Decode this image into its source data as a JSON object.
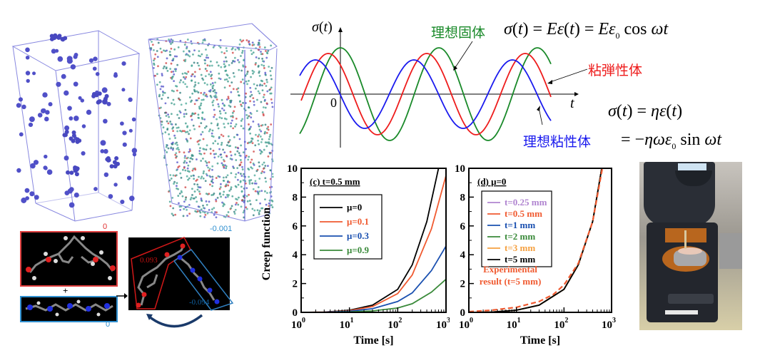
{
  "simulation_boxes": {
    "left_description": "sparse blue particle clusters in 3D box",
    "right_description": "dense teal/red/blue molecular system in 3D box"
  },
  "molecules": {
    "epoxy_charge_label": "0",
    "amine_charge_label": "0",
    "plus_sign": "+",
    "complex_top_label": "-0.001",
    "complex_red_label": "0.093",
    "complex_blue_label": "-0.094"
  },
  "wave_diagram": {
    "y_axis_label": "σ(t)",
    "x_axis_label": "t",
    "origin_label": "0",
    "ideal_solid_label": "理想固体",
    "viscoelastic_label": "粘弾性体",
    "ideal_viscous_label": "理想粘性体",
    "colors": {
      "solid": "#1a8a2a",
      "viscoelastic": "#ee1c1c",
      "viscous": "#1a1aee"
    },
    "solid_equation": "σ(t) = Eε(t) = Eε₀ cos ωt",
    "viscous_equation_1": "σ(t) = ηε(t)",
    "viscous_equation_2": "= −ηωε₀ sin ωt"
  },
  "chart_data": [
    {
      "type": "line",
      "panel": "(c) t=0.5 mm",
      "title": "(c) t=0.5 mm",
      "xlabel": "Time [s]",
      "ylabel": "Creep function",
      "xscale": "log",
      "xlim": [
        1,
        1000
      ],
      "ylim": [
        0,
        10
      ],
      "xticks": [
        "10^0",
        "10^1",
        "10^2",
        "10^3"
      ],
      "yticks": [
        "0",
        "2",
        "4",
        "6",
        "8",
        "10"
      ],
      "legend_position": "top-left",
      "series": [
        {
          "name": "μ=0",
          "color": "#000000",
          "x": [
            1,
            3,
            10,
            30,
            100,
            200,
            400,
            700
          ],
          "y": [
            0,
            0.02,
            0.15,
            0.5,
            1.6,
            3.3,
            6.3,
            10
          ]
        },
        {
          "name": "μ=0.1",
          "color": "#f05a30",
          "x": [
            1,
            3,
            10,
            30,
            100,
            200,
            500,
            1000
          ],
          "y": [
            0,
            0.02,
            0.12,
            0.4,
            1.3,
            2.6,
            5.8,
            9.5
          ]
        },
        {
          "name": "μ=0.3",
          "color": "#1a50b0",
          "x": [
            1,
            3,
            10,
            30,
            100,
            200,
            500,
            1000
          ],
          "y": [
            0,
            0.01,
            0.08,
            0.25,
            0.75,
            1.35,
            2.9,
            4.6
          ]
        },
        {
          "name": "μ=0.9",
          "color": "#3a8a3a",
          "x": [
            1,
            3,
            10,
            30,
            100,
            200,
            500,
            1000
          ],
          "y": [
            0,
            0.0,
            0.03,
            0.1,
            0.3,
            0.6,
            1.4,
            2.3
          ]
        }
      ]
    },
    {
      "type": "line",
      "panel": "(d) μ=0",
      "title": "(d) μ=0",
      "xlabel": "Time [s]",
      "ylabel": "",
      "xscale": "log",
      "xlim": [
        1,
        1000
      ],
      "ylim": [
        0,
        10
      ],
      "xticks": [
        "10^0",
        "10^1",
        "10^2",
        "10^3"
      ],
      "yticks": [
        "0",
        "2",
        "4",
        "6",
        "8",
        "10"
      ],
      "legend_position": "top-left",
      "annotation": "Experimental result (t=5 mm)",
      "series": [
        {
          "name": "t=0.25 mm",
          "color": "#b084d0",
          "x": [
            1,
            3,
            10,
            30,
            100,
            200,
            400,
            620
          ],
          "y": [
            0,
            0.02,
            0.15,
            0.5,
            1.6,
            3.3,
            6.3,
            10
          ]
        },
        {
          "name": "t=0.5 mm",
          "color": "#f05a30",
          "x": [
            1,
            3,
            10,
            30,
            100,
            200,
            400,
            620
          ],
          "y": [
            0,
            0.02,
            0.15,
            0.5,
            1.6,
            3.3,
            6.3,
            10
          ]
        },
        {
          "name": "t=1 mm",
          "color": "#1a50b0",
          "x": [
            1,
            3,
            10,
            30,
            100,
            200,
            400,
            620
          ],
          "y": [
            0,
            0.02,
            0.15,
            0.5,
            1.6,
            3.3,
            6.3,
            10
          ]
        },
        {
          "name": "t=2 mm",
          "color": "#3a8a3a",
          "x": [
            1,
            3,
            10,
            30,
            100,
            200,
            400,
            620
          ],
          "y": [
            0,
            0.02,
            0.15,
            0.5,
            1.6,
            3.3,
            6.3,
            10
          ]
        },
        {
          "name": "t=3 mm",
          "color": "#f5a040",
          "x": [
            1,
            3,
            10,
            30,
            100,
            200,
            400,
            620
          ],
          "y": [
            0,
            0.02,
            0.15,
            0.5,
            1.6,
            3.3,
            6.3,
            10
          ]
        },
        {
          "name": "t=5 mm",
          "color": "#000000",
          "x": [
            1,
            3,
            10,
            30,
            100,
            200,
            400,
            620
          ],
          "y": [
            0,
            0.02,
            0.15,
            0.5,
            1.6,
            3.3,
            6.3,
            10
          ]
        },
        {
          "name": "Experimental result (t=5 mm)",
          "color": "#f05a30",
          "dashed": true,
          "x": [
            1,
            3,
            10,
            30,
            60,
            100,
            200,
            400,
            640
          ],
          "y": [
            0.05,
            0.15,
            0.35,
            0.75,
            1.25,
            1.9,
            3.4,
            6.3,
            10
          ]
        }
      ]
    }
  ],
  "photo": {
    "description": "rheometer instrument with sample on stage"
  }
}
